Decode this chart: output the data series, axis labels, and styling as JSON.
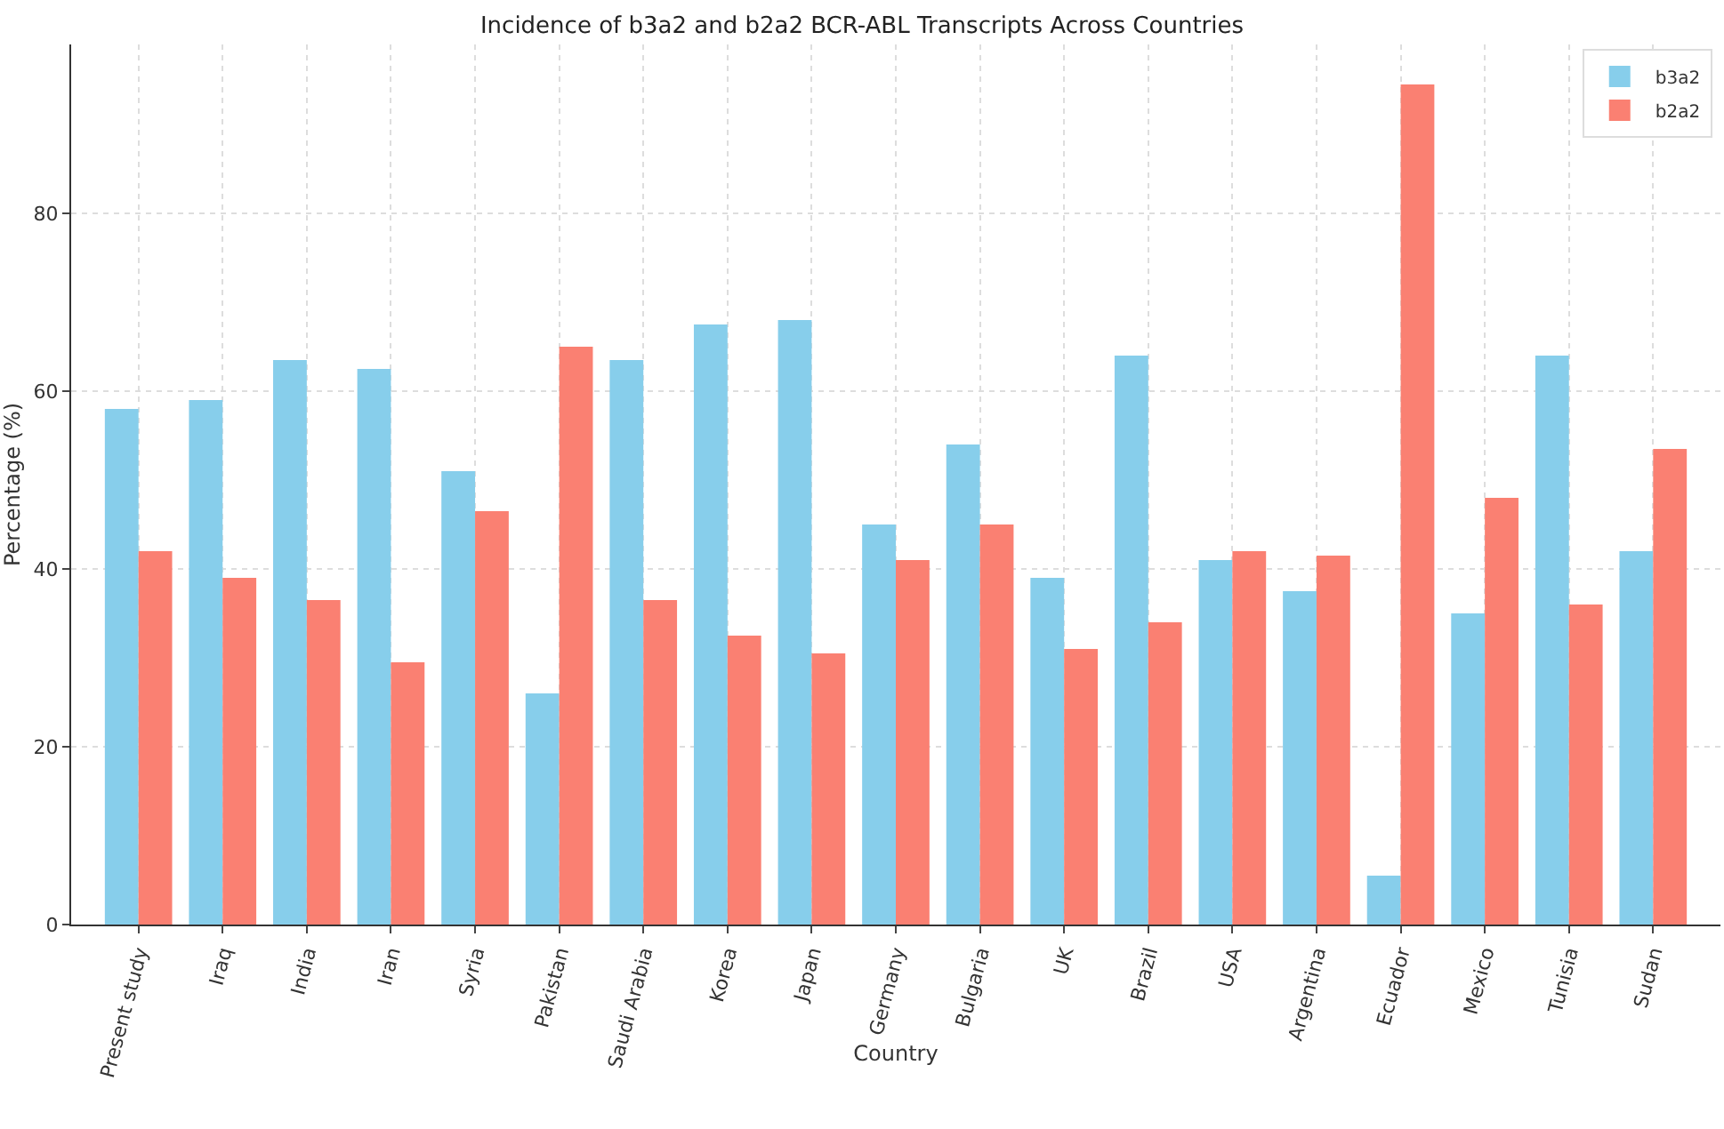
{
  "chart_data": {
    "type": "bar",
    "title": "Incidence of b3a2 and b2a2 BCR-ABL Transcripts Across Countries",
    "xlabel": "Country",
    "ylabel": "Percentage (%)",
    "categories": [
      "Present study",
      "Iraq",
      "India",
      "Iran",
      "Syria",
      "Pakistan",
      "Saudi Arabia",
      "Korea",
      "Japan",
      "Germany",
      "Bulgaria",
      "UK",
      "Brazil",
      "USA",
      "Argentina",
      "Ecuador",
      "Mexico",
      "Tunisia",
      "Sudan"
    ],
    "series": [
      {
        "name": "b3a2",
        "color": "#87ceeb",
        "values": [
          58,
          59,
          63.5,
          62.5,
          51,
          26,
          63.5,
          67.5,
          68,
          45,
          54,
          39,
          64,
          41,
          37.5,
          5.5,
          35,
          64,
          42
        ]
      },
      {
        "name": "b2a2",
        "color": "#fa8072",
        "values": [
          42,
          39,
          36.5,
          29.5,
          46.5,
          65,
          36.5,
          32.5,
          30.5,
          41,
          45,
          31,
          34,
          42,
          41.5,
          94.5,
          48,
          36,
          53.5
        ]
      }
    ],
    "ylim": [
      0,
      99
    ],
    "yticks": [
      0,
      20,
      40,
      60,
      80
    ],
    "grid": true,
    "legend": "top right"
  }
}
